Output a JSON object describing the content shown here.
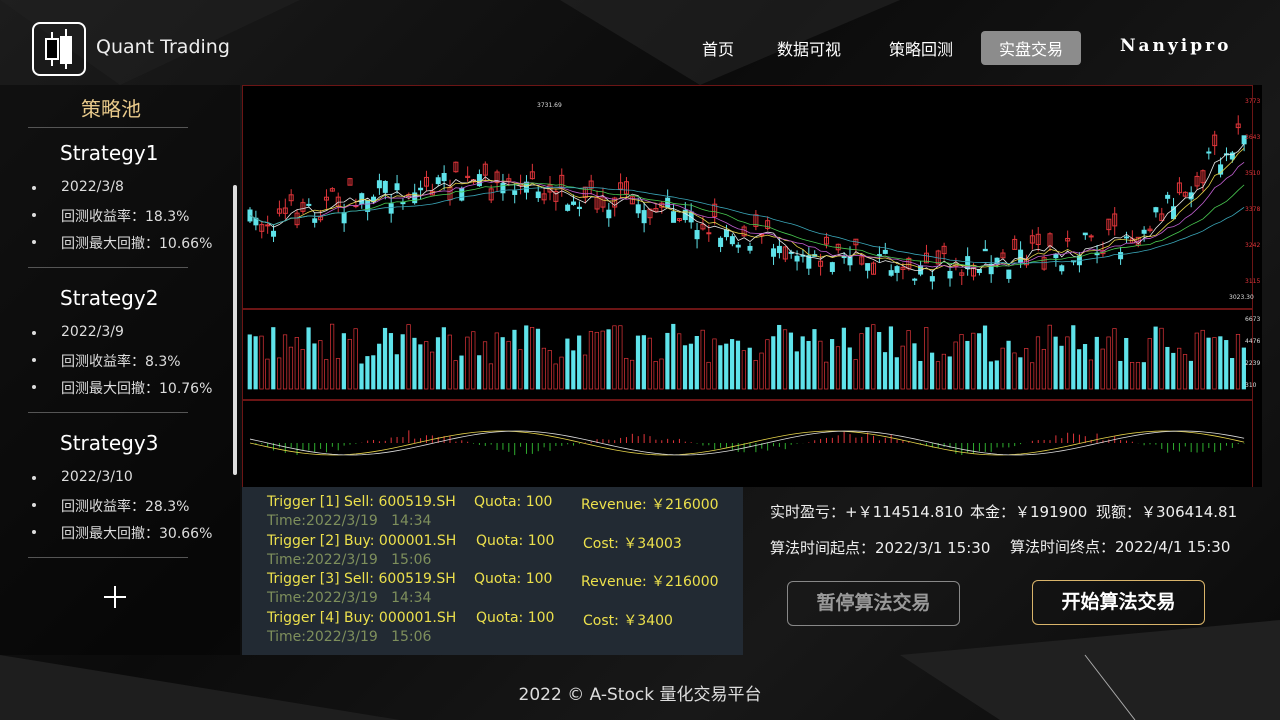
{
  "header": {
    "logo_text": "Quant Trading",
    "nav": [
      "首页",
      "数据可视",
      "策略回测",
      "实盘交易"
    ],
    "user": "Nanyipro"
  },
  "sidebar": {
    "title": "策略池",
    "strategies": [
      {
        "name": "Strategy1",
        "items": [
          "2022/3/8",
          "回测收益率：18.3%",
          "回测最大回撤：10.66%"
        ]
      },
      {
        "name": "Strategy2",
        "items": [
          "2022/3/9",
          "回测收益率：8.3%",
          "回测最大回撤：10.76%"
        ]
      },
      {
        "name": "Strategy3",
        "items": [
          "2022/3/10",
          "回测收益率：28.3%",
          "回测最大回撤：30.66%"
        ]
      }
    ]
  },
  "chart_image": {
    "price_axis": [
      "3773",
      "3643",
      "3510",
      "3378",
      "3242",
      "3115"
    ],
    "high_label": "3731.69",
    "low_label": "3023.30",
    "volume_axis": [
      "6673",
      "4476",
      "2239",
      "310"
    ]
  },
  "triggers": [
    {
      "order": "Trigger [1] Sell: 600519.SH",
      "quota": "Quota: 100",
      "amount": "Revenue: ￥216000",
      "time": "Time:2022/3/19   14:34"
    },
    {
      "order": "Trigger [2] Buy: 000001.SH",
      "quota": "Quota: 100",
      "amount": "Cost: ￥34003",
      "time": "Time:2022/3/19   15:06"
    },
    {
      "order": "Trigger [3] Sell: 600519.SH",
      "quota": "Quota: 100",
      "amount": "Revenue: ￥216000",
      "time": "Time:2022/3/19   14:34"
    },
    {
      "order": "Trigger [4] Buy: 000001.SH",
      "quota": "Quota: 100",
      "amount": "Cost: ￥3400",
      "time": "Time:2022/3/19   15:06"
    }
  ],
  "stats": {
    "pnl": "实时盈亏：+￥114514.810",
    "principal": "本金：￥191900",
    "cash": "现额：￥306414.81",
    "start": "算法时间起点：2022/3/1 15:30",
    "end": "算法时间终点：2022/4/1 15:30"
  },
  "buttons": {
    "pause": "暂停算法交易",
    "start": "开始算法交易"
  },
  "footer": "2022 © A-Stock 量化交易平台"
}
